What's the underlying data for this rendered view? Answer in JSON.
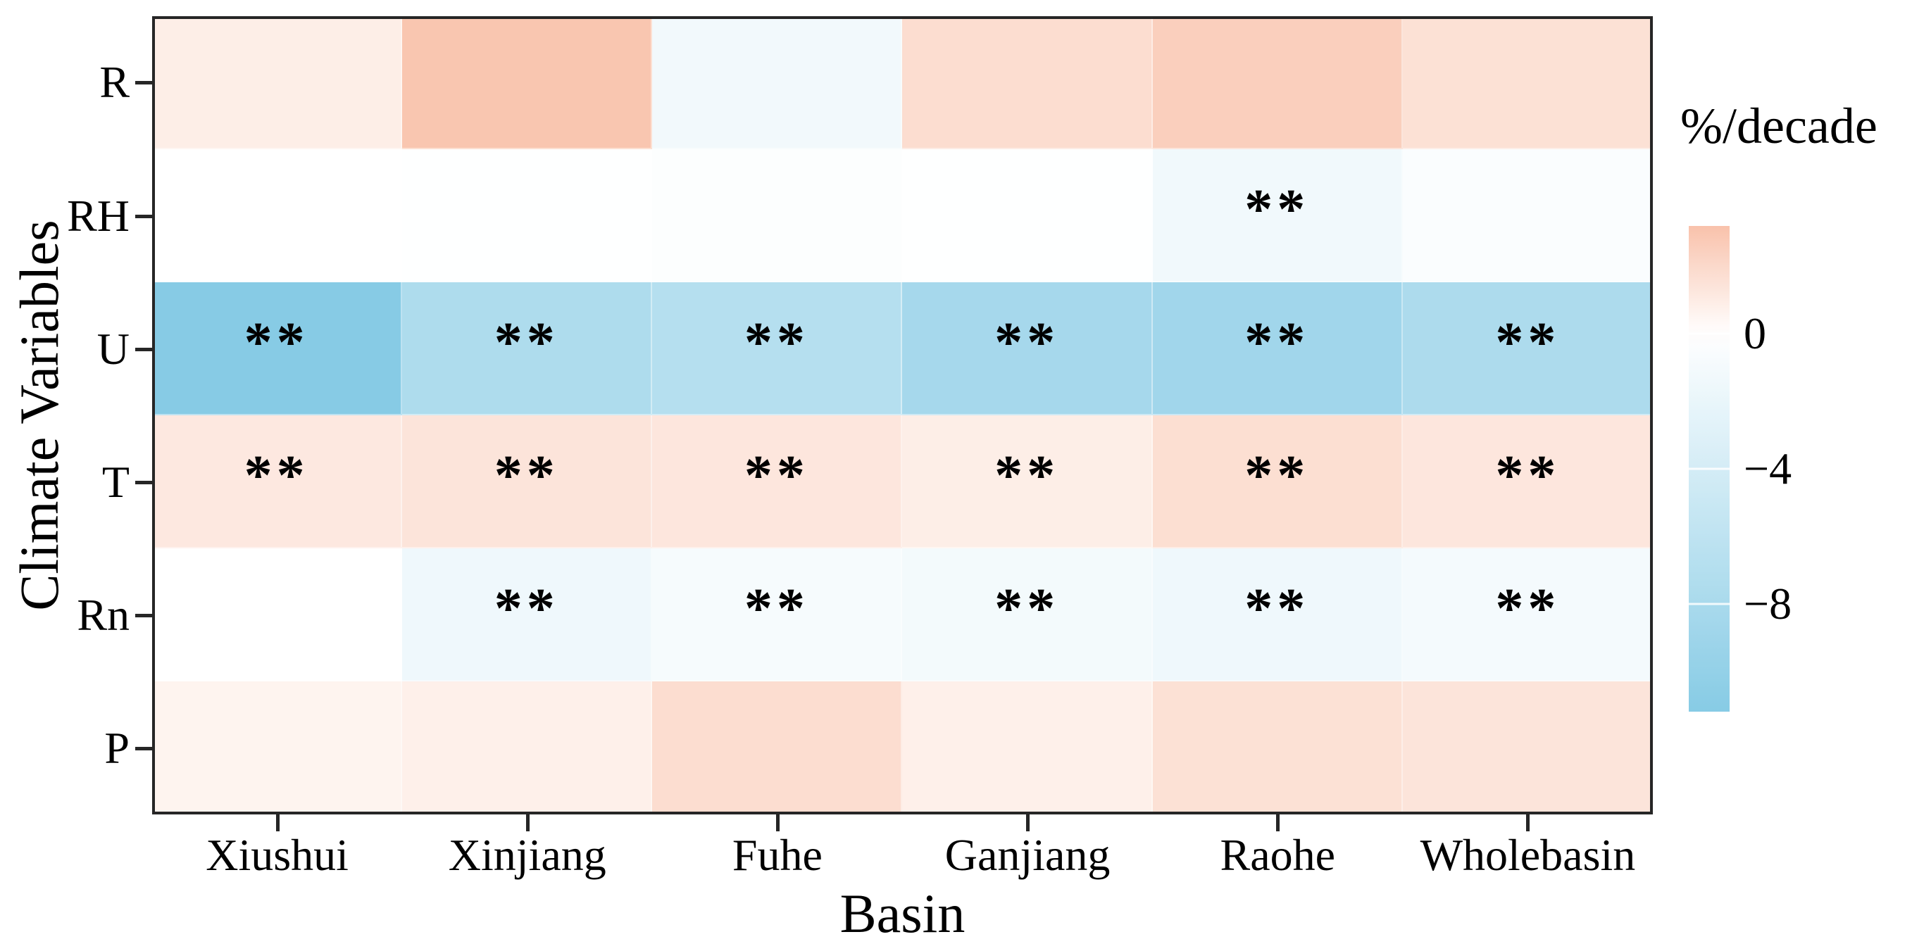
{
  "axes": {
    "y_title": "Climate Variables",
    "x_title": "Basin"
  },
  "legend": {
    "title": "%/decade",
    "ticks": [
      {
        "label": "0",
        "value": 0
      },
      {
        "label": "−4",
        "value": -4
      },
      {
        "label": "−8",
        "value": -8
      }
    ]
  },
  "chart_data": {
    "type": "heatmap",
    "title": "",
    "xlabel": "Basin",
    "ylabel": "Climate Variables",
    "colorbar_label": "%/decade",
    "unit": "%/decade",
    "categories_x": [
      "Xiushui",
      "Xinjiang",
      "Fuhe",
      "Ganjiang",
      "Raohe",
      "Wholebasin"
    ],
    "categories_y": [
      "R",
      "RH",
      "U",
      "T",
      "Rn",
      "P"
    ],
    "values": [
      [
        0.9,
        3.0,
        -1.2,
        1.8,
        2.5,
        1.6
      ],
      [
        0.0,
        -0.1,
        -0.3,
        -0.1,
        -1.3,
        -0.5
      ],
      [
        -11.2,
        -7.6,
        -6.9,
        -8.3,
        -8.8,
        -7.7
      ],
      [
        1.2,
        1.4,
        1.3,
        0.9,
        1.7,
        1.3
      ],
      [
        0.0,
        -1.5,
        -0.8,
        -1.1,
        -1.5,
        -1.0
      ],
      [
        0.6,
        0.8,
        1.8,
        0.8,
        1.6,
        1.4
      ]
    ],
    "significant": [
      [
        0,
        0,
        0,
        0,
        0,
        0
      ],
      [
        0,
        0,
        0,
        0,
        1,
        0
      ],
      [
        1,
        1,
        1,
        1,
        1,
        1
      ],
      [
        1,
        1,
        1,
        1,
        1,
        1
      ],
      [
        0,
        1,
        1,
        1,
        1,
        1
      ],
      [
        0,
        0,
        0,
        0,
        0,
        0
      ]
    ],
    "significance_marker": "**",
    "color_scale": {
      "max": 3.2,
      "min": -11.2,
      "zero_color": "#ffffff",
      "positive_color": "#f9c2ab",
      "negative_color": "#87cbe5"
    },
    "legend_position": "right",
    "grid": false
  }
}
